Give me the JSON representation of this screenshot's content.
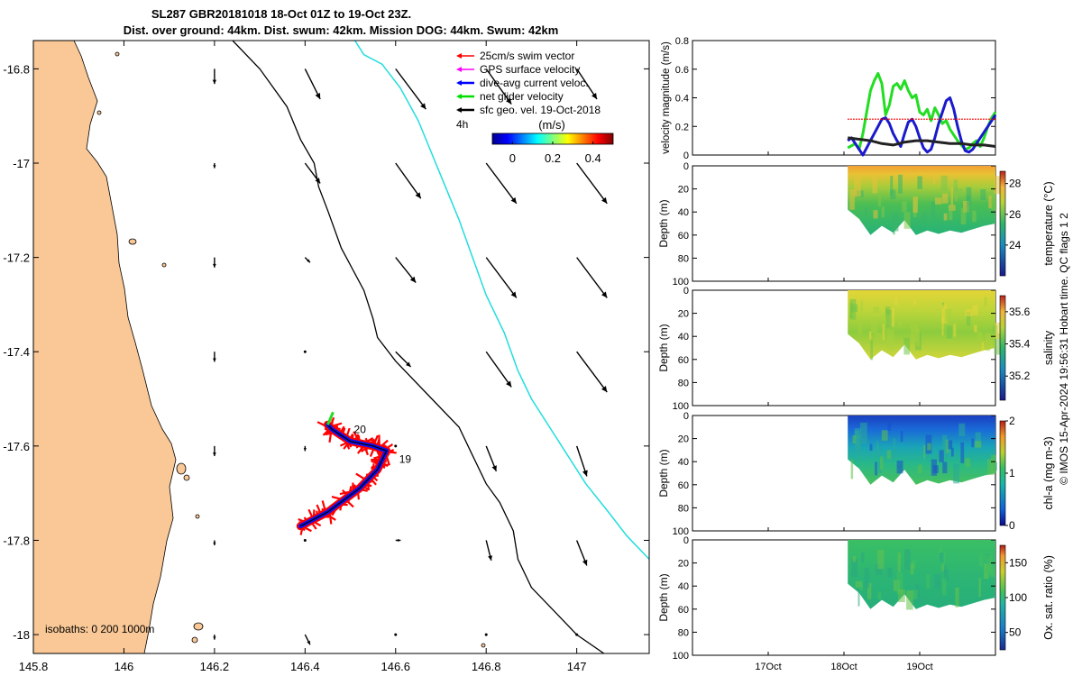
{
  "title": {
    "line1": "SL287 GBR20181018 18-Oct 01Z to 19-Oct 23Z.",
    "line2": "Dist. over ground: 44km. Dist. swum: 42km. Mission DOG: 44km. Swum: 42km"
  },
  "chart_data": [
    {
      "type": "map",
      "name": "glider-track-map",
      "xlim": [
        145.8,
        147.16
      ],
      "ylim": [
        -18.04,
        -16.74
      ],
      "x_ticks": [
        145.8,
        146,
        146.2,
        146.4,
        146.6,
        146.8,
        147
      ],
      "x_tick_labels": [
        "145.8",
        "146",
        "146.2",
        "146.4",
        "146.6",
        "146.8",
        "147"
      ],
      "y_ticks": [
        -16.8,
        -17,
        -17.2,
        -17.4,
        -17.6,
        -17.8,
        -18
      ],
      "y_tick_labels": [
        "-16.8",
        "-17",
        "-17.2",
        "-17.4",
        "-17.6",
        "-17.8",
        "-18"
      ],
      "legend": [
        {
          "label": "25cm/s swim vector",
          "color": "#ff0000"
        },
        {
          "label": "GPS surface velocity",
          "color": "#ff00ff"
        },
        {
          "label": "dive-avg current veloc.",
          "color": "#0000ff"
        },
        {
          "label": "net glider velocity",
          "color": "#00dd00"
        },
        {
          "label": "sfc geo. vel. 19-Oct-2018",
          "color": "#000000"
        }
      ],
      "time_step_label": "4h",
      "colorbar": {
        "label": "(m/s)",
        "ticks": [
          0,
          0.2,
          0.4
        ],
        "tick_labels": [
          "0",
          "0.2",
          "0.4"
        ],
        "range": [
          -0.1,
          0.5
        ]
      },
      "isobaths_label": "isobaths: 0   200   1000m",
      "track_day_labels": [
        {
          "text": "20",
          "lon": 146.5,
          "lat": -17.565
        },
        {
          "text": "19",
          "lon": 146.6,
          "lat": -17.628
        }
      ],
      "glider_track": [
        [
          146.39,
          -17.77
        ],
        [
          146.45,
          -17.74
        ],
        [
          146.52,
          -17.69
        ],
        [
          146.56,
          -17.65
        ],
        [
          146.58,
          -17.61
        ],
        [
          146.55,
          -17.6
        ],
        [
          146.5,
          -17.59
        ],
        [
          146.46,
          -17.565
        ],
        [
          146.45,
          -17.555
        ]
      ],
      "isobath_200": [
        [
          146.24,
          -16.74
        ],
        [
          146.3,
          -16.8
        ],
        [
          146.36,
          -16.88
        ],
        [
          146.39,
          -16.95
        ],
        [
          146.42,
          -17.0
        ],
        [
          146.43,
          -17.05
        ],
        [
          146.45,
          -17.1
        ],
        [
          146.48,
          -17.18
        ],
        [
          146.53,
          -17.27
        ],
        [
          146.55,
          -17.33
        ],
        [
          146.56,
          -17.37
        ],
        [
          146.6,
          -17.42
        ],
        [
          146.68,
          -17.5
        ],
        [
          146.74,
          -17.56
        ],
        [
          146.77,
          -17.62
        ],
        [
          146.8,
          -17.68
        ],
        [
          146.83,
          -17.72
        ],
        [
          146.86,
          -17.78
        ],
        [
          146.87,
          -17.84
        ],
        [
          146.9,
          -17.9
        ],
        [
          146.96,
          -17.96
        ],
        [
          147.0,
          -18.0
        ],
        [
          147.06,
          -18.04
        ]
      ],
      "isobath_1000": [
        [
          146.51,
          -16.74
        ],
        [
          146.53,
          -16.77
        ],
        [
          146.57,
          -16.79
        ],
        [
          146.61,
          -16.84
        ],
        [
          146.65,
          -16.91
        ],
        [
          146.68,
          -16.98
        ],
        [
          146.71,
          -17.05
        ],
        [
          146.74,
          -17.12
        ],
        [
          146.77,
          -17.2
        ],
        [
          146.8,
          -17.28
        ],
        [
          146.84,
          -17.36
        ],
        [
          146.87,
          -17.44
        ],
        [
          146.9,
          -17.5
        ],
        [
          146.94,
          -17.56
        ],
        [
          146.98,
          -17.62
        ],
        [
          147.02,
          -17.68
        ],
        [
          147.07,
          -17.74
        ],
        [
          147.11,
          -17.79
        ],
        [
          147.16,
          -17.84
        ]
      ],
      "current_vectors": [
        {
          "lon": 146.2,
          "lat": -16.8,
          "u": 0.0,
          "v": -0.03
        },
        {
          "lon": 146.4,
          "lat": -16.8,
          "u": 0.03,
          "v": -0.06
        },
        {
          "lon": 146.6,
          "lat": -16.8,
          "u": 0.06,
          "v": -0.08
        },
        {
          "lon": 146.8,
          "lat": -16.8,
          "u": 0.05,
          "v": -0.07
        },
        {
          "lon": 147.0,
          "lat": -16.8,
          "u": 0.04,
          "v": -0.06
        },
        {
          "lon": 146.2,
          "lat": -17.0,
          "u": 0.0,
          "v": -0.01
        },
        {
          "lon": 146.4,
          "lat": -17.0,
          "u": 0.03,
          "v": -0.04
        },
        {
          "lon": 146.6,
          "lat": -17.0,
          "u": 0.05,
          "v": -0.07
        },
        {
          "lon": 146.8,
          "lat": -17.0,
          "u": 0.06,
          "v": -0.08
        },
        {
          "lon": 147.0,
          "lat": -17.0,
          "u": 0.06,
          "v": -0.08
        },
        {
          "lon": 146.2,
          "lat": -17.2,
          "u": 0.0,
          "v": -0.02
        },
        {
          "lon": 146.4,
          "lat": -17.2,
          "u": 0.01,
          "v": -0.01
        },
        {
          "lon": 146.6,
          "lat": -17.2,
          "u": 0.04,
          "v": -0.05
        },
        {
          "lon": 146.8,
          "lat": -17.2,
          "u": 0.06,
          "v": -0.08
        },
        {
          "lon": 147.0,
          "lat": -17.2,
          "u": 0.06,
          "v": -0.08
        },
        {
          "lon": 146.2,
          "lat": -17.4,
          "u": 0.0,
          "v": -0.02
        },
        {
          "lon": 146.4,
          "lat": -17.4,
          "u": 0.0,
          "v": 0.0
        },
        {
          "lon": 146.6,
          "lat": -17.4,
          "u": 0.03,
          "v": -0.03
        },
        {
          "lon": 146.8,
          "lat": -17.4,
          "u": 0.05,
          "v": -0.07
        },
        {
          "lon": 147.0,
          "lat": -17.4,
          "u": 0.06,
          "v": -0.08
        },
        {
          "lon": 146.2,
          "lat": -17.6,
          "u": 0.0,
          "v": -0.02
        },
        {
          "lon": 146.4,
          "lat": -17.6,
          "u": 0.0,
          "v": -0.01
        },
        {
          "lon": 146.6,
          "lat": -17.6,
          "u": 0.0,
          "v": 0.0
        },
        {
          "lon": 146.8,
          "lat": -17.6,
          "u": 0.02,
          "v": -0.05
        },
        {
          "lon": 147.0,
          "lat": -17.6,
          "u": 0.02,
          "v": -0.06
        },
        {
          "lon": 146.2,
          "lat": -17.8,
          "u": 0.0,
          "v": -0.01
        },
        {
          "lon": 146.4,
          "lat": -17.8,
          "u": 0.0,
          "v": 0.0
        },
        {
          "lon": 146.6,
          "lat": -17.8,
          "u": 0.01,
          "v": 0.0
        },
        {
          "lon": 146.8,
          "lat": -17.8,
          "u": 0.01,
          "v": -0.04
        },
        {
          "lon": 147.0,
          "lat": -17.8,
          "u": 0.02,
          "v": -0.05
        },
        {
          "lon": 146.2,
          "lat": -18.0,
          "u": 0.0,
          "v": -0.01
        },
        {
          "lon": 146.4,
          "lat": -18.0,
          "u": 0.01,
          "v": -0.02
        },
        {
          "lon": 146.6,
          "lat": -18.0,
          "u": 0.0,
          "v": 0.0
        },
        {
          "lon": 146.8,
          "lat": -18.0,
          "u": 0.0,
          "v": 0.0
        },
        {
          "lon": 147.0,
          "lat": -18.0,
          "u": 0.0,
          "v": 0.0
        }
      ]
    },
    {
      "type": "line",
      "name": "velocity-magnitude",
      "ylabel": "velocity magnitude (m/s)",
      "ylim": [
        0,
        0.8
      ],
      "y_ticks": [
        0,
        0.2,
        0.4,
        0.6,
        0.8
      ],
      "y_tick_labels": [
        "0",
        "0.2",
        "0.4",
        "0.6",
        "0.8"
      ],
      "x_start_day": 16.0,
      "x_end_day": 20.0,
      "series": [
        {
          "name": "net glider velocity",
          "color": "#22dd22",
          "x": [
            18.05,
            18.15,
            18.2,
            18.25,
            18.3,
            18.35,
            18.4,
            18.45,
            18.5,
            18.55,
            18.6,
            18.65,
            18.7,
            18.75,
            18.8,
            18.85,
            18.9,
            18.95,
            19.0,
            19.05,
            19.1,
            19.15,
            19.2,
            19.25,
            19.3,
            19.35,
            19.4,
            19.45,
            19.5,
            19.55,
            19.6,
            19.65,
            19.7,
            19.75,
            19.8,
            19.85,
            19.9,
            19.95,
            20.0
          ],
          "y": [
            0.05,
            0.08,
            0.04,
            0.15,
            0.3,
            0.45,
            0.52,
            0.57,
            0.5,
            0.28,
            0.35,
            0.48,
            0.5,
            0.46,
            0.52,
            0.45,
            0.4,
            0.42,
            0.3,
            0.28,
            0.32,
            0.24,
            0.33,
            0.28,
            0.22,
            0.24,
            0.18,
            0.14,
            0.1,
            0.07,
            0.04,
            0.05,
            0.08,
            0.1,
            0.06,
            0.12,
            0.2,
            0.26,
            0.3
          ]
        },
        {
          "name": "dive-avg current veloc.",
          "color": "#1a1acc",
          "x": [
            18.05,
            18.1,
            18.15,
            18.2,
            18.25,
            18.3,
            18.35,
            18.4,
            18.45,
            18.5,
            18.55,
            18.6,
            18.65,
            18.7,
            18.75,
            18.8,
            18.85,
            18.9,
            18.95,
            19.0,
            19.05,
            19.1,
            19.15,
            19.2,
            19.25,
            19.3,
            19.35,
            19.4,
            19.45,
            19.5,
            19.55,
            19.6,
            19.65,
            19.7,
            19.75,
            19.8,
            19.85,
            19.9,
            19.95,
            20.0
          ],
          "y": [
            0.1,
            0.12,
            0.08,
            0.04,
            0.0,
            0.05,
            0.1,
            0.15,
            0.2,
            0.25,
            0.26,
            0.22,
            0.15,
            0.1,
            0.06,
            0.15,
            0.23,
            0.25,
            0.2,
            0.12,
            0.05,
            0.02,
            0.04,
            0.12,
            0.22,
            0.3,
            0.38,
            0.4,
            0.32,
            0.2,
            0.1,
            0.03,
            0.02,
            0.04,
            0.08,
            0.12,
            0.16,
            0.2,
            0.24,
            0.28
          ]
        },
        {
          "name": "sfc geo. vel.",
          "color": "#222222",
          "x": [
            18.05,
            18.2,
            18.35,
            18.5,
            18.65,
            18.8,
            18.95,
            19.1,
            19.25,
            19.4,
            19.55,
            19.7,
            19.85,
            20.0
          ],
          "y": [
            0.12,
            0.11,
            0.1,
            0.08,
            0.07,
            0.09,
            0.1,
            0.1,
            0.09,
            0.08,
            0.08,
            0.07,
            0.07,
            0.06
          ]
        },
        {
          "name": "25cm/s swim vector",
          "color": "#ff0000",
          "x": [
            18.05,
            20.0
          ],
          "y": [
            0.25,
            0.25
          ]
        }
      ]
    },
    {
      "type": "heatmap",
      "name": "temperature-section",
      "ylabel": "Depth (m)",
      "ylim": [
        0,
        100
      ],
      "y_ticks": [
        0,
        20,
        40,
        60,
        80,
        100
      ],
      "y_tick_labels": [
        "0",
        "20",
        "40",
        "60",
        "80",
        "100"
      ],
      "colorbar_label": "temperature (°C)",
      "colorbar_range": [
        22,
        28.8
      ],
      "colorbar_ticks": [
        24,
        26,
        28
      ],
      "colorbar_tick_labels": [
        "24",
        "26",
        "28"
      ],
      "surface_value": 27.8,
      "deep_value": 25.3
    },
    {
      "type": "heatmap",
      "name": "salinity-section",
      "ylabel": "Depth (m)",
      "ylim": [
        0,
        100
      ],
      "y_ticks": [
        0,
        20,
        40,
        60,
        80,
        100
      ],
      "y_tick_labels": [
        "0",
        "20",
        "40",
        "60",
        "80",
        "100"
      ],
      "colorbar_label": "salinity",
      "colorbar_range": [
        35.05,
        35.7
      ],
      "colorbar_ticks": [
        35.2,
        35.4,
        35.6
      ],
      "colorbar_tick_labels": [
        "35.2",
        "35.4",
        "35.6"
      ],
      "surface_value": 35.55,
      "deep_value": 35.42
    },
    {
      "type": "heatmap",
      "name": "chla-section",
      "ylabel": "Depth (m)",
      "ylim": [
        0,
        100
      ],
      "y_ticks": [
        0,
        20,
        40,
        60,
        80,
        100
      ],
      "y_tick_labels": [
        "0",
        "20",
        "40",
        "60",
        "80",
        "100"
      ],
      "colorbar_label": "chl-a (mg m-3)",
      "colorbar_range": [
        0,
        2
      ],
      "colorbar_ticks": [
        0,
        1,
        2
      ],
      "colorbar_tick_labels": [
        "0",
        "1",
        "2"
      ],
      "surface_value": 0.25,
      "deep_value": 0.85
    },
    {
      "type": "heatmap",
      "name": "oxygen-section",
      "ylabel": "Depth (m)",
      "ylim": [
        0,
        100
      ],
      "y_ticks": [
        0,
        20,
        40,
        60,
        80,
        100
      ],
      "y_tick_labels": [
        "0",
        "20",
        "40",
        "60",
        "80",
        "100"
      ],
      "colorbar_label": "Ox. sat. ratio (%)",
      "colorbar_range": [
        25,
        175
      ],
      "colorbar_ticks": [
        50,
        100,
        150
      ],
      "colorbar_tick_labels": [
        "50",
        "100",
        "150"
      ],
      "surface_value": 102,
      "deep_value": 98
    }
  ],
  "time_axis": {
    "tick_days": [
      17,
      18,
      19
    ],
    "tick_labels": [
      "17Oct",
      "18Oct",
      "19Oct"
    ]
  },
  "credit": "© IMOS 15-Apr-2024 19:56:31 Hobart time. QC flags 1  2",
  "colors": {
    "land": "#f9c896",
    "isobath_1000": "#22dddd",
    "isobath_200": "#000000"
  }
}
